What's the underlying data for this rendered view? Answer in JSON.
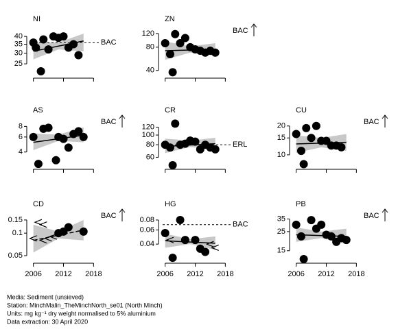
{
  "chart_data": {
    "type": "scatter",
    "log_y": true,
    "xlim": [
      2005.5,
      2018.5
    ],
    "xticks": [
      2006,
      2012,
      2018
    ],
    "panels": [
      {
        "title": "NI",
        "ylim": [
          21,
          44
        ],
        "yticks": [
          25,
          30,
          35,
          40
        ],
        "x": [
          2006,
          2006.5,
          2007.5,
          2008,
          2009,
          2010,
          2011,
          2012,
          2013,
          2014,
          2015
        ],
        "values": [
          36,
          33,
          22,
          38,
          32,
          40,
          39,
          40,
          33,
          35,
          29
        ],
        "trend": {
          "x": [
            2006,
            2016
          ],
          "values": [
            31,
            37
          ]
        },
        "band": {
          "x": [
            2006,
            2011,
            2016
          ],
          "lower": [
            27,
            32,
            31
          ],
          "upper": [
            36,
            36,
            42
          ]
        },
        "reference": {
          "label": "BAC",
          "value": 36
        }
      },
      {
        "title": "ZN",
        "ylim": [
          36,
          130
        ],
        "yticks": [
          40,
          80,
          120
        ],
        "x": [
          2006,
          2007,
          2007.5,
          2008,
          2009,
          2010,
          2011,
          2012,
          2013,
          2014,
          2015,
          2016
        ],
        "values": [
          90,
          65,
          38,
          118,
          90,
          105,
          80,
          75,
          72,
          68,
          72,
          68
        ],
        "trend": {
          "x": [
            2006,
            2016
          ],
          "values": [
            72,
            75
          ]
        },
        "band": {
          "x": [
            2006,
            2011,
            2016
          ],
          "lower": [
            55,
            68,
            62
          ],
          "upper": [
            95,
            82,
            90
          ]
        },
        "above": "BAC"
      },
      {
        "title": "AS",
        "ylim": [
          2.8,
          9
        ],
        "yticks": [
          4,
          6,
          8
        ],
        "x": [
          2006,
          2007,
          2008,
          2009,
          2010.5,
          2011,
          2012,
          2013,
          2014,
          2015,
          2016
        ],
        "values": [
          6,
          2.9,
          7.5,
          7.7,
          3.2,
          6,
          5.7,
          4.5,
          6.5,
          7,
          6
        ],
        "trend": {
          "x": [
            2006,
            2016
          ],
          "values": [
            5.2,
            6.3
          ]
        },
        "band": {
          "x": [
            2006,
            2011,
            2016
          ],
          "lower": [
            4.2,
            5.4,
            5.2
          ],
          "upper": [
            6.6,
            6.4,
            7.8
          ]
        },
        "above": "BAC"
      },
      {
        "title": "CR",
        "ylim": [
          50,
          135
        ],
        "yticks": [
          60,
          80,
          100,
          120
        ],
        "x": [
          2006,
          2007,
          2007.5,
          2008,
          2009,
          2010,
          2011,
          2012,
          2013,
          2014,
          2015,
          2016
        ],
        "values": [
          80,
          75,
          50,
          130,
          80,
          82,
          88,
          86,
          72,
          80,
          75,
          72
        ],
        "trend": {
          "x": [
            2006,
            2016
          ],
          "values": [
            77,
            82
          ]
        },
        "band": {
          "x": [
            2006,
            2011,
            2016
          ],
          "lower": [
            66,
            76,
            72
          ],
          "upper": [
            92,
            88,
            94
          ]
        },
        "reference": {
          "label": "ERL",
          "value": 80
        }
      },
      {
        "title": "CU",
        "ylim": [
          7.8,
          22
        ],
        "yticks": [
          10,
          15,
          20
        ],
        "x": [
          2006,
          2007,
          2007.5,
          2008,
          2009,
          2010,
          2011,
          2012,
          2013,
          2014,
          2015
        ],
        "values": [
          16.5,
          11,
          8,
          19,
          15,
          20,
          14,
          14,
          12.5,
          12.5,
          12
        ],
        "trend": {
          "x": [
            2006,
            2016
          ],
          "values": [
            13,
            13.5
          ]
        },
        "band": {
          "x": [
            2006,
            2011,
            2016
          ],
          "lower": [
            10.5,
            12,
            11
          ],
          "upper": [
            16,
            15,
            16.5
          ]
        },
        "above": "BAC"
      },
      {
        "title": "CD",
        "ylim": [
          0.045,
          0.17
        ],
        "yticks": [
          0.05,
          0.1,
          0.15
        ],
        "x": [
          2006,
          2007,
          2008,
          2008,
          2009,
          2010,
          2011,
          2012,
          2013,
          2016
        ],
        "values": [
          0.085,
          0.14,
          0.13,
          0.08,
          0.085,
          0.09,
          0.1,
          0.105,
          0.12,
          0.105
        ],
        "censored": [
          true,
          true,
          true,
          true,
          true,
          true,
          false,
          false,
          false,
          false
        ],
        "trend": {
          "x": [
            2006,
            2016
          ],
          "values": [
            0.08,
            0.11
          ],
          "dashed": true
        },
        "band": {
          "x": [
            2006,
            2011,
            2016
          ],
          "lower": [
            0.055,
            0.085,
            0.08
          ],
          "upper": [
            0.13,
            0.105,
            0.15
          ]
        },
        "above": "BAC"
      },
      {
        "title": "HG",
        "ylim": [
          0.026,
          0.09
        ],
        "yticks": [
          0.04,
          0.06,
          0.08
        ],
        "x": [
          2006,
          2007,
          2007.5,
          2009,
          2010,
          2012,
          2013,
          2014,
          2015,
          2016
        ],
        "values": [
          0.055,
          0.045,
          0.027,
          0.08,
          0.045,
          0.045,
          0.035,
          0.032,
          0.04,
          0.036
        ],
        "censored": [
          false,
          true,
          false,
          false,
          false,
          false,
          false,
          false,
          true,
          true
        ],
        "trend": {
          "x": [
            2006,
            2016
          ],
          "values": [
            0.044,
            0.041
          ]
        },
        "band": {
          "x": [
            2006,
            2011,
            2016
          ],
          "lower": [
            0.036,
            0.04,
            0.034
          ],
          "upper": [
            0.054,
            0.046,
            0.05
          ]
        },
        "reference": {
          "label": "BAC",
          "value": 0.07
        }
      },
      {
        "title": "PB",
        "ylim": [
          12,
          38
        ],
        "yticks": [
          15,
          25,
          35
        ],
        "x": [
          2006,
          2007,
          2007.5,
          2009,
          2010,
          2011,
          2012,
          2013,
          2014,
          2015,
          2016
        ],
        "values": [
          30,
          22,
          12,
          34,
          27,
          30,
          23,
          22,
          19,
          21,
          20
        ],
        "trend": {
          "x": [
            2006,
            2016
          ],
          "values": [
            23,
            22
          ]
        },
        "band": {
          "x": [
            2006,
            2011,
            2016
          ],
          "lower": [
            19,
            21,
            18
          ],
          "upper": [
            28,
            25,
            27
          ]
        },
        "above": "BAC"
      }
    ],
    "footer": [
      "Media: Sediment (unsieved)",
      "Station: MinchMalin_TheMinchNorth_se01 (North Minch)",
      "Units:  mg kg⁻¹ dry weight normalised to 5% aluminium",
      "Data extraction: 30 April 2020"
    ]
  }
}
